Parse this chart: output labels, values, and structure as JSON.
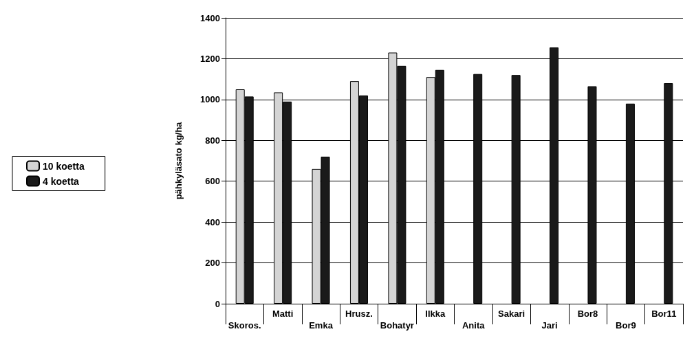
{
  "chart_data": {
    "type": "bar",
    "ylabel": "pähkyläsato kg/ha",
    "categories": [
      "Skoros.",
      "Matti",
      "Emka",
      "Hrusz.",
      "Bohatyr",
      "Ilkka",
      "Anita",
      "Sakari",
      "Jari",
      "Bor8",
      "Bor9",
      "Bor11"
    ],
    "series": [
      {
        "name": "10 koetta",
        "color": "#d4d4d4",
        "values": [
          1050,
          1035,
          660,
          1090,
          1230,
          1110,
          null,
          null,
          null,
          null,
          null,
          null
        ]
      },
      {
        "name": "4 koetta",
        "color": "#1a1a1a",
        "values": [
          1015,
          990,
          720,
          1020,
          1165,
          1145,
          1125,
          1120,
          1255,
          1065,
          980,
          1080
        ]
      }
    ],
    "ylim": [
      0,
      1400
    ],
    "yticks": [
      0,
      200,
      400,
      600,
      800,
      1000,
      1200,
      1400
    ],
    "grid": "y",
    "legend": "left"
  }
}
